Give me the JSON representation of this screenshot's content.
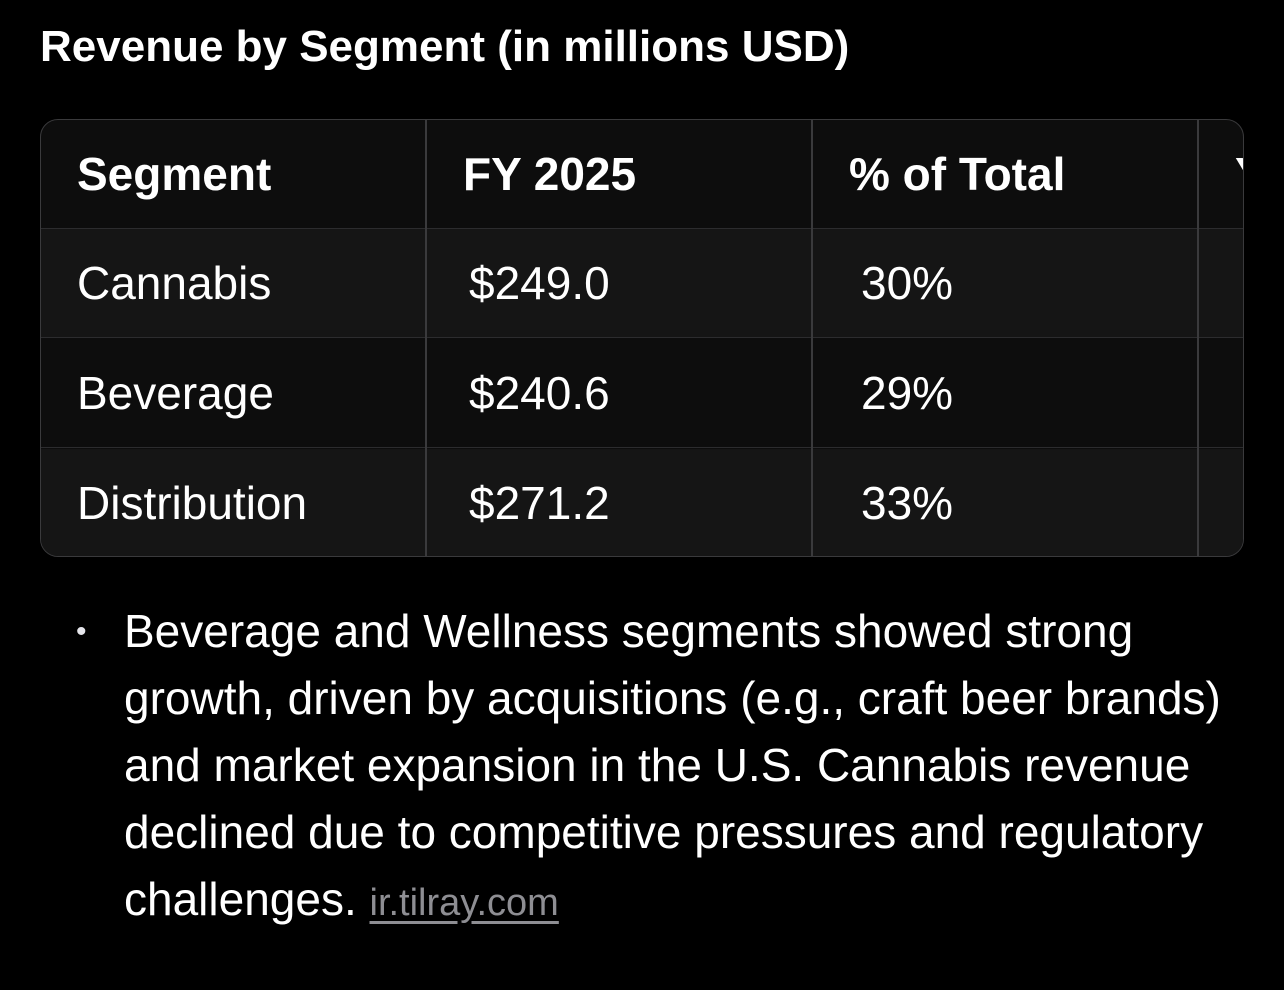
{
  "heading": "Revenue by Segment (in millions USD)",
  "table": {
    "columns": [
      "Segment",
      "FY 2025",
      "% of Total",
      "Y"
    ],
    "rows": [
      {
        "segment": "Cannabis",
        "fy2025": "$249.0",
        "pct": "30%"
      },
      {
        "segment": "Beverage",
        "fy2025": "$240.6",
        "pct": "29%"
      },
      {
        "segment": "Distribution",
        "fy2025": "$271.2",
        "pct": "33%"
      }
    ]
  },
  "notes": {
    "bullet": "•",
    "text": "Beverage and Wellness segments showed strong growth, driven by acquisitions (e.g., craft beer brands) and market expansion in the U.S. Cannabis revenue declined due to competitive pressures and regulatory challenges.",
    "source_link": "ir.tilray.com"
  },
  "colors": {
    "background": "#000000",
    "text": "#ffffff",
    "border": "#3a3a3c",
    "link": "#8e8e93"
  }
}
